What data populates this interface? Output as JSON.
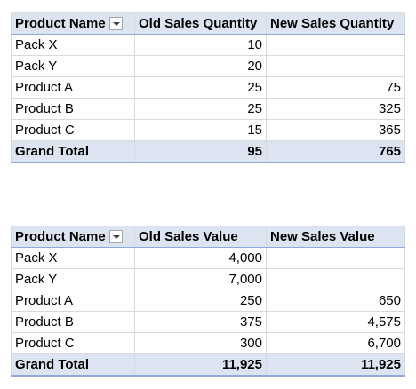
{
  "pivot1": {
    "headers": [
      "Product Name",
      "Old Sales Quantity",
      "New Sales Quantity"
    ],
    "rows": [
      {
        "name": "Pack X",
        "old": "10",
        "new": ""
      },
      {
        "name": "Pack Y",
        "old": "20",
        "new": ""
      },
      {
        "name": "Product A",
        "old": "25",
        "new": "75"
      },
      {
        "name": "Product B",
        "old": "25",
        "new": "325"
      },
      {
        "name": "Product C",
        "old": "15",
        "new": "365"
      }
    ],
    "total": {
      "name": "Grand Total",
      "old": "95",
      "new": "765"
    }
  },
  "pivot2": {
    "headers": [
      "Product Name",
      "Old Sales Value",
      "New Sales Value"
    ],
    "rows": [
      {
        "name": "Pack X",
        "old": "4,000",
        "new": ""
      },
      {
        "name": "Pack Y",
        "old": "7,000",
        "new": ""
      },
      {
        "name": "Product A",
        "old": "250",
        "new": "650"
      },
      {
        "name": "Product B",
        "old": "375",
        "new": "4,575"
      },
      {
        "name": "Product C",
        "old": "300",
        "new": "6,700"
      }
    ],
    "total": {
      "name": "Grand Total",
      "old": "11,925",
      "new": "11,925"
    }
  },
  "icons": {
    "filter_dropdown": "chevron-down-icon"
  }
}
